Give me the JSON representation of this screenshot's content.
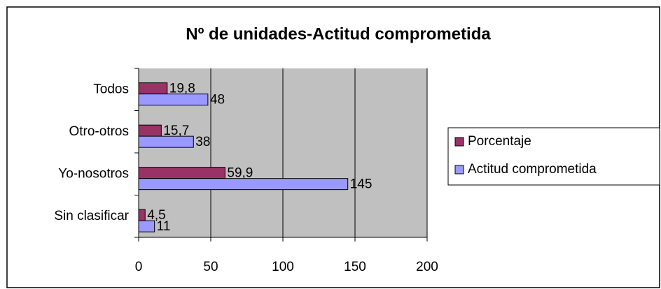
{
  "chart_data": {
    "type": "bar",
    "orientation": "horizontal",
    "title": "Nº de unidades-Actitud comprometida",
    "categories": [
      "Todos",
      "Otro-otros",
      "Yo-nosotros",
      "Sin clasificar"
    ],
    "series": [
      {
        "name": "Porcentaje",
        "color": "#993366",
        "values": [
          19.8,
          15.7,
          59.9,
          4.5
        ],
        "value_labels": [
          "19,8",
          "15,7",
          "59,9",
          "4,5"
        ]
      },
      {
        "name": "Actitud comprometida",
        "color": "#9999ff",
        "values": [
          48,
          38,
          145,
          11
        ]
      }
    ],
    "xlim": [
      0,
      200
    ],
    "xticks": [
      0,
      50,
      100,
      150,
      200
    ],
    "grid": true,
    "legend": "right"
  }
}
